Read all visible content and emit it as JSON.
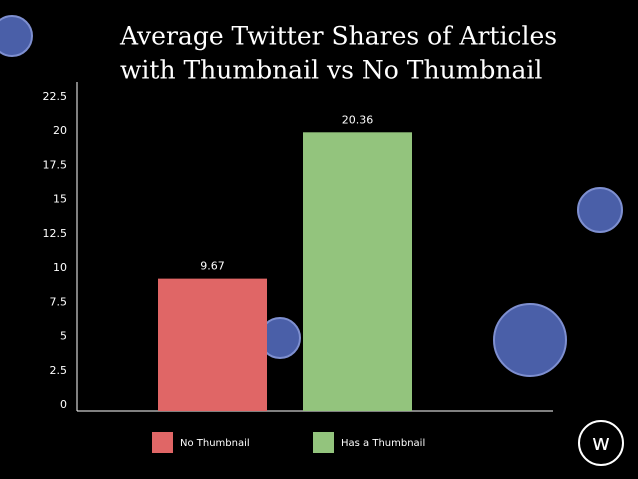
{
  "chart_data": {
    "type": "bar",
    "title": [
      "Average Twitter Shares of Articles",
      "with Thumbnail vs No Thumbnail"
    ],
    "categories": [
      "No Thumbnail",
      "Has a Thumbnail"
    ],
    "values": [
      9.67,
      20.36
    ],
    "colors": [
      "#e06666",
      "#93c47d"
    ],
    "ylim": [
      0,
      22.5
    ],
    "yticks": [
      0,
      2.5,
      5,
      7.5,
      10,
      12.5,
      15,
      17.5,
      20,
      22.5
    ],
    "legend": "bottom",
    "logo": "w"
  }
}
